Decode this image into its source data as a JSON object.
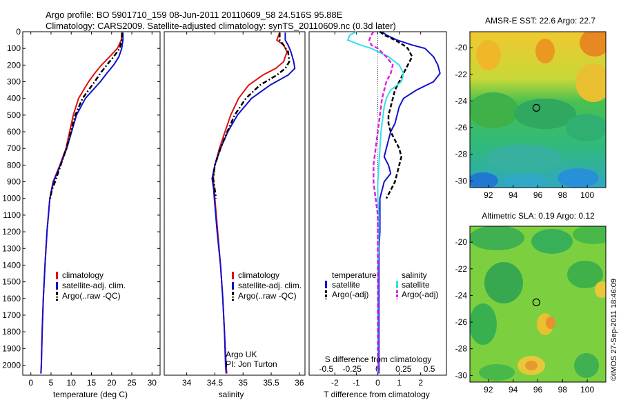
{
  "header": {
    "line1": "Argo profile: BO 5901710_159 08-Jun-2011 20110609_58 24.516S 95.88E",
    "line2": "Climatology: CARS2009. Satellite-adjusted climatology: synTS_20110609.nc (0.3d later)"
  },
  "credit": "©IMOS 27-Sep-2011 18:46:09",
  "colors": {
    "red": "#e01010",
    "blue": "#1010d0",
    "black": "#000000",
    "cyan": "#30e0e8",
    "magenta": "#e020e0"
  },
  "chart_data": [
    {
      "type": "line",
      "id": "temperature",
      "xlabel": "temperature (deg C)",
      "xlim": [
        -2,
        32
      ],
      "ylim": [
        2060,
        0
      ],
      "xticks": [
        "0",
        "5",
        "10",
        "15",
        "20",
        "25",
        "30"
      ],
      "xtick_values": [
        0,
        5,
        10,
        15,
        20,
        25,
        30
      ],
      "ytick_values": [
        0,
        100,
        200,
        300,
        400,
        500,
        600,
        700,
        800,
        900,
        1000,
        1100,
        1200,
        1300,
        1400,
        1500,
        1600,
        1700,
        1800,
        1900,
        2000
      ],
      "yticks": [
        "0",
        "100",
        "200",
        "300",
        "400",
        "500",
        "600",
        "700",
        "800",
        "900",
        "1000",
        "1100",
        "1200",
        "1300",
        "1400",
        "1500",
        "1600",
        "1700",
        "1800",
        "1900",
        "2000"
      ],
      "legend": [
        "climatology",
        "satellite-adj. clim.",
        "Argo(..raw -QC)"
      ],
      "series": [
        {
          "name": "climatology",
          "color": "#e01010",
          "dash": "solid",
          "depth": [
            5,
            50,
            100,
            150,
            200,
            250,
            300,
            400,
            500,
            600,
            700,
            800,
            900,
            1000,
            1200,
            1400,
            1600,
            1800,
            2000,
            2050
          ],
          "values": [
            22.5,
            22.4,
            21.4,
            19.5,
            17.5,
            15.8,
            14.3,
            11.8,
            10.5,
            9.6,
            8.7,
            7.2,
            5.5,
            4.7,
            4.0,
            3.5,
            3.1,
            2.8,
            2.6,
            2.5
          ]
        },
        {
          "name": "satellite-adj. clim.",
          "color": "#1010d0",
          "dash": "solid",
          "depth": [
            5,
            50,
            100,
            150,
            200,
            250,
            300,
            400,
            500,
            600,
            700,
            800,
            900,
            1000,
            1200,
            1400,
            1600,
            1800,
            2000,
            2050
          ],
          "values": [
            22.8,
            22.8,
            22.5,
            21.8,
            20.5,
            18.8,
            17.2,
            13.5,
            11.3,
            10.1,
            8.9,
            7.3,
            5.6,
            4.7,
            4.0,
            3.5,
            3.1,
            2.8,
            2.6,
            2.5
          ]
        },
        {
          "name": "Argo(..raw -QC)",
          "color": "#000000",
          "dash": "dashdot",
          "depth": [
            5,
            50,
            100,
            150,
            200,
            250,
            300,
            400,
            500,
            600,
            700,
            800,
            900,
            950,
            1000
          ],
          "values": [
            22.6,
            22.5,
            22.0,
            20.5,
            18.8,
            17.2,
            15.8,
            12.8,
            11.0,
            9.9,
            8.8,
            7.4,
            6.0,
            5.2,
            4.8
          ]
        }
      ]
    },
    {
      "type": "line",
      "id": "salinity",
      "xlabel": "salinity",
      "xlim": [
        33.6,
        36.1
      ],
      "ylim": [
        2060,
        0
      ],
      "xticks": [
        "34",
        "34.5",
        "35",
        "35.5",
        "36"
      ],
      "xtick_values": [
        34,
        34.5,
        35,
        35.5,
        36
      ],
      "legend": [
        "climatology",
        "satellite-adj. clim.",
        "Argo(..raw -QC)"
      ],
      "annotation": [
        "Argo UK",
        "PI: Jon Turton"
      ],
      "series": [
        {
          "name": "climatology",
          "color": "#e01010",
          "dash": "solid",
          "depth": [
            5,
            50,
            80,
            120,
            180,
            220,
            260,
            320,
            400,
            500,
            600,
            700,
            800,
            880,
            950,
            1000,
            1200,
            1400,
            1600,
            1800,
            2000,
            2050
          ],
          "values": [
            35.65,
            35.6,
            35.72,
            35.78,
            35.72,
            35.58,
            35.35,
            35.1,
            34.92,
            34.78,
            34.68,
            34.58,
            34.5,
            34.47,
            34.49,
            34.5,
            34.55,
            34.6,
            34.64,
            34.67,
            34.7,
            34.71
          ]
        },
        {
          "name": "satellite-adj. clim.",
          "color": "#1010d0",
          "dash": "solid",
          "depth": [
            5,
            50,
            80,
            120,
            180,
            220,
            260,
            320,
            400,
            500,
            600,
            700,
            800,
            880,
            950,
            1000,
            1200,
            1400,
            1600,
            1800,
            2000,
            2050
          ],
          "values": [
            35.75,
            35.75,
            35.8,
            35.85,
            35.9,
            35.92,
            35.8,
            35.48,
            35.15,
            34.9,
            34.73,
            34.6,
            34.5,
            34.45,
            34.48,
            34.49,
            34.54,
            34.6,
            34.64,
            34.67,
            34.69,
            34.7
          ]
        },
        {
          "name": "Argo(..raw -QC)",
          "color": "#000000",
          "dash": "dashdot",
          "depth": [
            5,
            50,
            80,
            120,
            180,
            220,
            260,
            320,
            400,
            500,
            600,
            700,
            800,
            880,
            950,
            1000
          ],
          "values": [
            35.65,
            35.65,
            35.72,
            35.8,
            35.82,
            35.75,
            35.6,
            35.3,
            35.05,
            34.85,
            34.72,
            34.6,
            34.5,
            34.47,
            34.5,
            34.52
          ]
        }
      ]
    },
    {
      "type": "line",
      "id": "differences",
      "xlabel": "T difference from climatology",
      "xlabel_top": "S difference from climatology",
      "xlim": [
        -3.2,
        3.2
      ],
      "ylim": [
        2060,
        0
      ],
      "xticks": [
        "-2",
        "-1",
        "0",
        "1",
        "2"
      ],
      "xtick_values": [
        -2,
        -1,
        0,
        1,
        2
      ],
      "xticks_top": [
        "-0.5",
        "-0.25",
        "0",
        "0.25",
        "0.5"
      ],
      "xtick_top_values": [
        -0.5,
        -0.25,
        0,
        0.25,
        0.5
      ],
      "legend_titles": [
        "temperature",
        "salinity"
      ],
      "legend": [
        "satellite",
        "Argo(-adj)",
        "satellite",
        "Argo(-adj)"
      ],
      "series": [
        {
          "name": "satellite",
          "group": "temperature",
          "color": "#1010d0",
          "dash": "solid",
          "depth": [
            0,
            20,
            50,
            80,
            100,
            150,
            200,
            250,
            300,
            350,
            400,
            450,
            500,
            550,
            600,
            650,
            700,
            750,
            800,
            850,
            900,
            950,
            1000,
            1100,
            1200,
            1300,
            1400,
            1500,
            1600,
            1700,
            1800,
            1900,
            2000,
            2050
          ],
          "values": [
            0.2,
            0.4,
            0.9,
            1.6,
            2.2,
            2.6,
            2.8,
            2.9,
            2.6,
            1.8,
            1.2,
            1.0,
            0.9,
            0.8,
            0.6,
            0.5,
            0.4,
            0.3,
            0.5,
            0.6,
            0.3,
            0.2,
            0.1,
            0.1,
            0.1,
            0.05,
            0.05,
            0.05,
            0.05,
            0.05,
            0.05,
            0.05,
            0.05,
            0.05
          ]
        },
        {
          "name": "Argo(-adj)",
          "group": "temperature",
          "color": "#000000",
          "dash": "dashed",
          "depth": [
            0,
            20,
            50,
            80,
            100,
            150,
            200,
            250,
            300,
            350,
            400,
            450,
            500,
            550,
            600,
            650,
            700,
            750,
            800,
            850,
            900,
            950,
            1000
          ],
          "values": [
            0.1,
            0.3,
            0.8,
            1.2,
            1.4,
            1.6,
            1.4,
            1.2,
            1.0,
            0.8,
            0.7,
            0.6,
            0.5,
            0.5,
            0.6,
            0.8,
            1.0,
            1.1,
            1.0,
            0.9,
            0.8,
            0.6,
            0.4
          ]
        },
        {
          "name": "satellite",
          "group": "salinity",
          "color": "#30e0e8",
          "dash": "solid",
          "depth": [
            0,
            20,
            50,
            80,
            100,
            150,
            200,
            250,
            300,
            350,
            400,
            450,
            500,
            600,
            700,
            800,
            900,
            1000,
            1100,
            1200,
            1400,
            1600,
            1800,
            2000,
            2050
          ],
          "values": [
            -1.0,
            -1.3,
            -1.4,
            -0.8,
            -0.3,
            0.5,
            1.0,
            1.2,
            1.1,
            0.6,
            0.4,
            0.3,
            0.25,
            0.15,
            0.1,
            0.05,
            0.0,
            0.0,
            0.05,
            0.05,
            0.0,
            0.0,
            0.0,
            0.0,
            0.0
          ]
        },
        {
          "name": "Argo(-adj)",
          "group": "salinity",
          "color": "#e020e0",
          "dash": "dashed",
          "depth": [
            0,
            20,
            50,
            80,
            100,
            150,
            200,
            250,
            300,
            350,
            400,
            450,
            500,
            600,
            700,
            800,
            900,
            1000,
            1100,
            1200,
            1400,
            1600,
            1800,
            2000,
            2050
          ],
          "values": [
            -0.2,
            -0.3,
            -0.4,
            -0.3,
            0.0,
            0.4,
            0.7,
            0.6,
            0.4,
            0.3,
            0.2,
            0.15,
            0.1,
            0.0,
            -0.1,
            -0.2,
            -0.2,
            -0.1,
            0.0,
            0.0,
            0.0,
            0.0,
            0.0,
            0.0,
            0.0
          ]
        }
      ]
    },
    {
      "type": "heatmap",
      "id": "sst_map",
      "title": "AMSR-E SST: 22.6 Argo: 22.7",
      "xlim": [
        90.5,
        101.5
      ],
      "ylim": [
        -30.5,
        -18.8
      ],
      "xticks": [
        "92",
        "94",
        "96",
        "98",
        "100"
      ],
      "xtick_values": [
        92,
        94,
        96,
        98,
        100
      ],
      "yticks": [
        "-20",
        "-22",
        "-24",
        "-26",
        "-28",
        "-30"
      ],
      "ytick_values": [
        -20,
        -22,
        -24,
        -26,
        -28,
        -30
      ],
      "marker": {
        "lon": 95.88,
        "lat": -24.516
      }
    },
    {
      "type": "heatmap",
      "id": "sla_map",
      "title": "Altimetric SLA: 0.19 Argo: 0.12",
      "xlim": [
        90.5,
        101.5
      ],
      "ylim": [
        -30.5,
        -18.8
      ],
      "xticks": [
        "92",
        "94",
        "96",
        "98",
        "100"
      ],
      "xtick_values": [
        92,
        94,
        96,
        98,
        100
      ],
      "yticks": [
        "-20",
        "-22",
        "-24",
        "-26",
        "-28",
        "-30"
      ],
      "ytick_values": [
        -20,
        -22,
        -24,
        -26,
        -28,
        -30
      ],
      "marker": {
        "lon": 95.88,
        "lat": -24.516
      }
    }
  ]
}
